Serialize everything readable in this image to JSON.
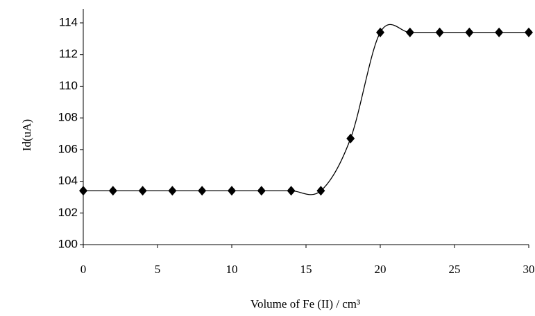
{
  "chart_data": {
    "type": "line",
    "x": [
      0,
      2,
      4,
      6,
      8,
      10,
      12,
      14,
      16,
      18,
      20,
      22,
      24,
      26,
      28,
      30
    ],
    "series": [
      {
        "color": "#000000",
        "values": [
          103.4,
          103.4,
          103.4,
          103.4,
          103.4,
          103.4,
          103.4,
          103.4,
          103.4,
          106.7,
          113.4,
          113.4,
          113.4,
          113.4,
          113.4,
          113.4
        ]
      }
    ],
    "xlim": [
      0,
      30
    ],
    "xticks": [
      0,
      5,
      10,
      15,
      20,
      25,
      30
    ],
    "ylim": [
      100,
      114
    ],
    "yticks": [
      100,
      102,
      104,
      106,
      108,
      110,
      112,
      114
    ],
    "xlabel": "Volume of Fe (II) / cm³",
    "ylabel": "Id(uA)",
    "smooth": true,
    "marker": "diamond"
  }
}
